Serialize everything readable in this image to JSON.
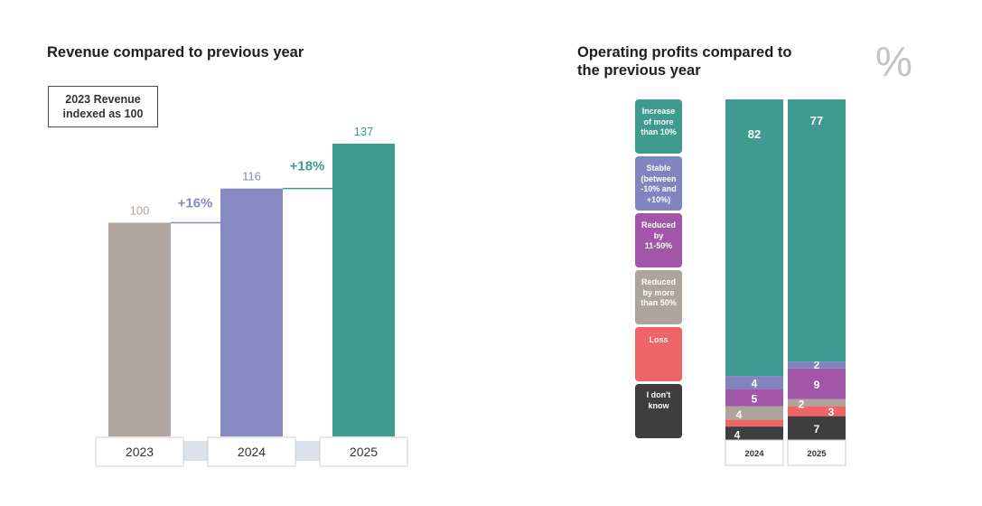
{
  "revenue": {
    "title": "Revenue compared to previous year",
    "index_note_line1": "2023 Revenue",
    "index_note_line2": "indexed as 100"
  },
  "operating": {
    "title_line1": "Operating profits compared to",
    "title_line2": "the previous year",
    "unit": "%",
    "legend": [
      {
        "lines": [
          "Increase",
          "of more",
          "than 10%"
        ],
        "color": "#3f9b90"
      },
      {
        "lines": [
          "Stable",
          "(between",
          "-10% and",
          "+10%)"
        ],
        "color": "#8184bf"
      },
      {
        "lines": [
          "Reduced",
          "by",
          "11-50%"
        ],
        "color": "#a156a8"
      },
      {
        "lines": [
          "Reduced",
          "by more",
          "than 50%"
        ],
        "color": "#ada49c"
      },
      {
        "lines": [
          "Loss"
        ],
        "color": "#ef6466"
      },
      {
        "lines": [
          "I don't",
          "know"
        ],
        "color": "#3e3e3e"
      }
    ]
  },
  "chart_data": [
    {
      "type": "bar",
      "title": "Revenue compared to previous year",
      "categories": [
        "2023",
        "2024",
        "2025"
      ],
      "values": [
        100,
        116,
        137
      ],
      "value_labels": [
        "100",
        "116",
        "137"
      ],
      "growth_labels": [
        "+16%",
        "+18%"
      ],
      "colors": [
        "#b0a69f",
        "#878ac3",
        "#3f9b90"
      ],
      "ylim": [
        0,
        137
      ]
    },
    {
      "type": "bar",
      "stacked": true,
      "title": "Operating profits compared to the previous year",
      "unit": "%",
      "categories": [
        "2024",
        "2025"
      ],
      "series": [
        {
          "name": "I don't know",
          "values": [
            4,
            7
          ],
          "color": "#3e3e3e"
        },
        {
          "name": "Loss",
          "values": [
            2,
            3
          ],
          "color": "#ef6466"
        },
        {
          "name": "Reduced by more than 50%",
          "values": [
            4,
            2
          ],
          "color": "#ada49c"
        },
        {
          "name": "Reduced by 11-50%",
          "values": [
            5,
            9
          ],
          "color": "#a156a8"
        },
        {
          "name": "Stable (between -10% and +10%)",
          "values": [
            4,
            2
          ],
          "color": "#8184bf"
        },
        {
          "name": "Increase of more than 10%",
          "values": [
            82,
            77
          ],
          "color": "#3f9b90"
        }
      ]
    }
  ]
}
